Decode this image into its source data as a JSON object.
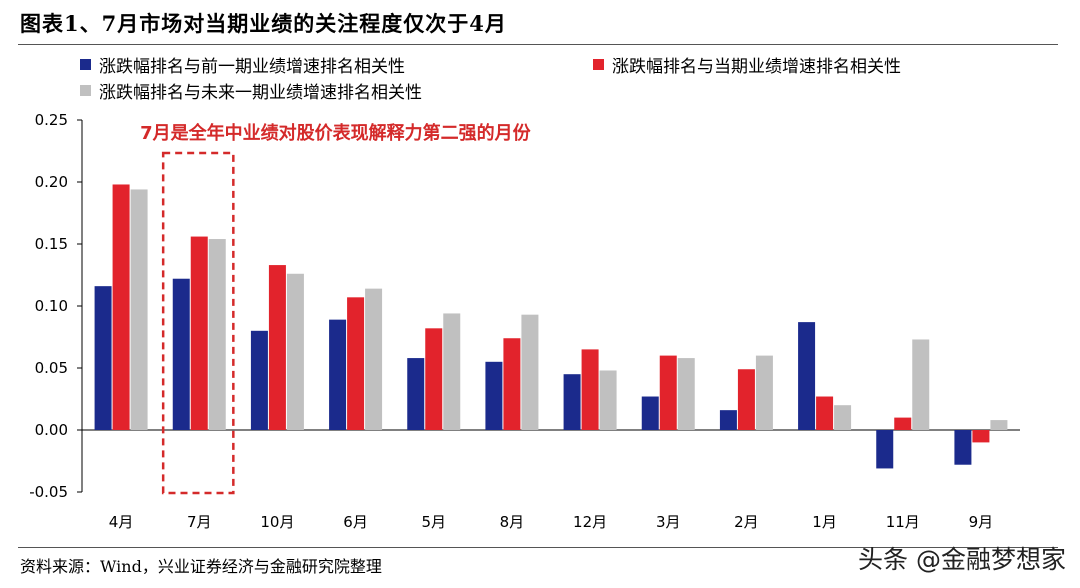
{
  "title": "图表1、7月市场对当期业绩的关注程度仅次于4月",
  "source": "资料来源：Wind，兴业证券经济与金融研究院整理",
  "watermark": "头条 @金融梦想家",
  "chart_data": {
    "type": "bar",
    "categories": [
      "4月",
      "7月",
      "10月",
      "6月",
      "5月",
      "8月",
      "12月",
      "3月",
      "2月",
      "1月",
      "11月",
      "9月"
    ],
    "series": [
      {
        "name": "涨跌幅排名与前一期业绩增速排名相关性",
        "color": "#1b2a8c",
        "values": [
          0.116,
          0.122,
          0.08,
          0.089,
          0.058,
          0.055,
          0.045,
          0.027,
          0.016,
          0.087,
          -0.031,
          -0.028
        ]
      },
      {
        "name": "涨跌幅排名与当期业绩增速排名相关性",
        "color": "#e2232c",
        "values": [
          0.198,
          0.156,
          0.133,
          0.107,
          0.082,
          0.074,
          0.065,
          0.06,
          0.049,
          0.027,
          0.01,
          -0.01
        ]
      },
      {
        "name": "涨跌幅排名与未来一期业绩增速排名相关性",
        "color": "#c0c0c0",
        "values": [
          0.194,
          0.154,
          0.126,
          0.114,
          0.094,
          0.093,
          0.048,
          0.058,
          0.06,
          0.02,
          0.073,
          0.008
        ]
      }
    ],
    "y_ticks": [
      "0.25",
      "0.20",
      "0.15",
      "0.10",
      "0.05",
      "0.00",
      "-0.05"
    ],
    "ylim": [
      -0.05,
      0.25
    ],
    "grid": false,
    "legend_position": "top",
    "annotation": {
      "text": "7月是全年中业绩对股价表现解释力第二强的月份",
      "category": "7月",
      "color": "#d42a2a"
    }
  }
}
